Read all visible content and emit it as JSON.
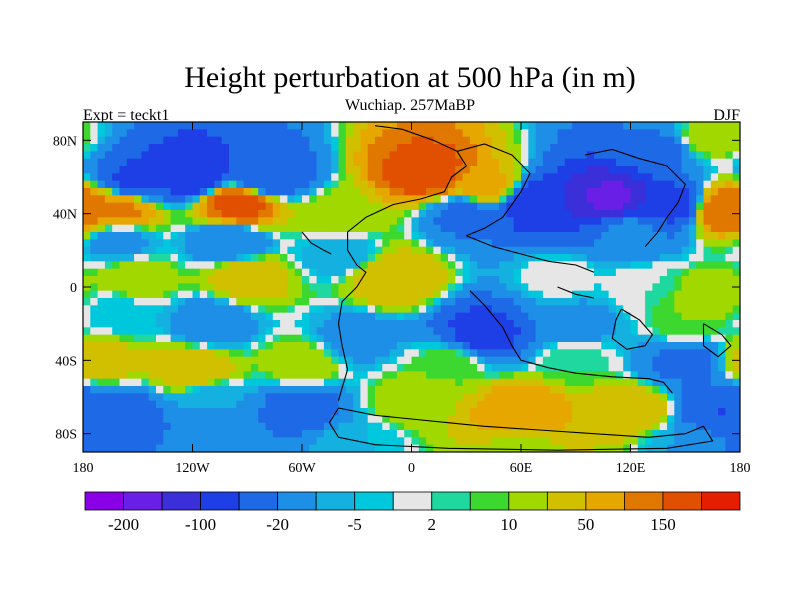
{
  "chart_data": {
    "type": "heatmap",
    "title": "Height perturbation at 500 hPa (in m)",
    "subtitle": "Wuchiap. 257MaBP",
    "left_label": "Expt = teckt1",
    "right_label": "DJF",
    "xlim": [
      -180,
      180
    ],
    "ylim": [
      -90,
      90
    ],
    "x_ticks": [
      {
        "value": -180,
        "label": "180"
      },
      {
        "value": -120,
        "label": "120W"
      },
      {
        "value": -60,
        "label": "60W"
      },
      {
        "value": 0,
        "label": "0"
      },
      {
        "value": 60,
        "label": "60E"
      },
      {
        "value": 120,
        "label": "120E"
      },
      {
        "value": 180,
        "label": "180"
      }
    ],
    "y_ticks": [
      {
        "value": 80,
        "label": "80N"
      },
      {
        "value": 40,
        "label": "40N"
      },
      {
        "value": 0,
        "label": "0"
      },
      {
        "value": -40,
        "label": "40S"
      },
      {
        "value": -80,
        "label": "80S"
      }
    ],
    "grid": false,
    "colorbar": {
      "placement": "bottom",
      "colors": [
        "#8a00e6",
        "#6a1fe6",
        "#3a2fd8",
        "#1e3ee6",
        "#1e6ae6",
        "#1e8fe6",
        "#14b0e0",
        "#00c8dc",
        "#e6e6e6",
        "#1ed8a0",
        "#3cd830",
        "#a0d800",
        "#d0c000",
        "#e6a800",
        "#e07800",
        "#e05000",
        "#e61e00"
      ],
      "tick_labels": [
        {
          "boundary": 1,
          "label": "-200"
        },
        {
          "boundary": 3,
          "label": "-100"
        },
        {
          "boundary": 5,
          "label": "-20"
        },
        {
          "boundary": 7,
          "label": "-5"
        },
        {
          "boundary": 9,
          "label": "2"
        },
        {
          "boundary": 11,
          "label": "10"
        },
        {
          "boundary": 13,
          "label": "50"
        },
        {
          "boundary": 15,
          "label": "150"
        }
      ]
    },
    "series": [
      {
        "lon": -150,
        "lat": 58,
        "value": -110
      },
      {
        "lon": -120,
        "lat": 62,
        "value": -150
      },
      {
        "lon": -80,
        "lat": 60,
        "value": -90
      },
      {
        "lon": 140,
        "lat": 75,
        "value": -60
      },
      {
        "lon": 160,
        "lat": 80,
        "value": 20
      },
      {
        "lon": -160,
        "lat": 42,
        "value": 90
      },
      {
        "lon": -95,
        "lat": 45,
        "value": 140
      },
      {
        "lon": -40,
        "lat": 38,
        "value": 20
      },
      {
        "lon": 10,
        "lat": 62,
        "value": 150
      },
      {
        "lon": 40,
        "lat": 55,
        "value": 60
      },
      {
        "lon": 175,
        "lat": 42,
        "value": 120
      },
      {
        "lon": 30,
        "lat": 40,
        "value": -60
      },
      {
        "lon": 70,
        "lat": 45,
        "value": -150
      },
      {
        "lon": 110,
        "lat": 48,
        "value": -210
      },
      {
        "lon": 140,
        "lat": 45,
        "value": -120
      },
      {
        "lon": -160,
        "lat": 25,
        "value": -30
      },
      {
        "lon": -100,
        "lat": 25,
        "value": -50
      },
      {
        "lon": -40,
        "lat": 18,
        "value": -20
      },
      {
        "lon": 120,
        "lat": 30,
        "value": -40
      },
      {
        "lon": -150,
        "lat": 5,
        "value": 20
      },
      {
        "lon": -90,
        "lat": 5,
        "value": 40
      },
      {
        "lon": -10,
        "lat": 5,
        "value": 50
      },
      {
        "lon": 80,
        "lat": 5,
        "value": 0
      },
      {
        "lon": 130,
        "lat": 0,
        "value": 2
      },
      {
        "lon": 160,
        "lat": -5,
        "value": 20
      },
      {
        "lon": -160,
        "lat": -15,
        "value": -10
      },
      {
        "lon": -110,
        "lat": -20,
        "value": -40
      },
      {
        "lon": -30,
        "lat": -28,
        "value": -30
      },
      {
        "lon": 40,
        "lat": -25,
        "value": -120
      },
      {
        "lon": 90,
        "lat": -20,
        "value": -30
      },
      {
        "lon": 150,
        "lat": -20,
        "value": 10
      },
      {
        "lon": -170,
        "lat": -40,
        "value": 40
      },
      {
        "lon": -120,
        "lat": -45,
        "value": 50
      },
      {
        "lon": -60,
        "lat": -42,
        "value": 20
      },
      {
        "lon": 20,
        "lat": -42,
        "value": 10
      },
      {
        "lon": 90,
        "lat": -40,
        "value": 5
      },
      {
        "lon": 150,
        "lat": -40,
        "value": -60
      },
      {
        "lon": -160,
        "lat": -70,
        "value": -80
      },
      {
        "lon": -110,
        "lat": -62,
        "value": -20
      },
      {
        "lon": -60,
        "lat": -66,
        "value": -70
      },
      {
        "lon": 0,
        "lat": -62,
        "value": 20
      },
      {
        "lon": 60,
        "lat": -68,
        "value": 80
      },
      {
        "lon": 120,
        "lat": -68,
        "value": 50
      },
      {
        "lon": 170,
        "lat": -68,
        "value": -100
      },
      {
        "lon": -170,
        "lat": -85,
        "value": -60
      },
      {
        "lon": -110,
        "lat": -88,
        "value": -40
      },
      {
        "lon": -30,
        "lat": -85,
        "value": -10
      },
      {
        "lon": 60,
        "lat": -88,
        "value": 20
      },
      {
        "lon": 150,
        "lat": -85,
        "value": -20
      }
    ]
  }
}
